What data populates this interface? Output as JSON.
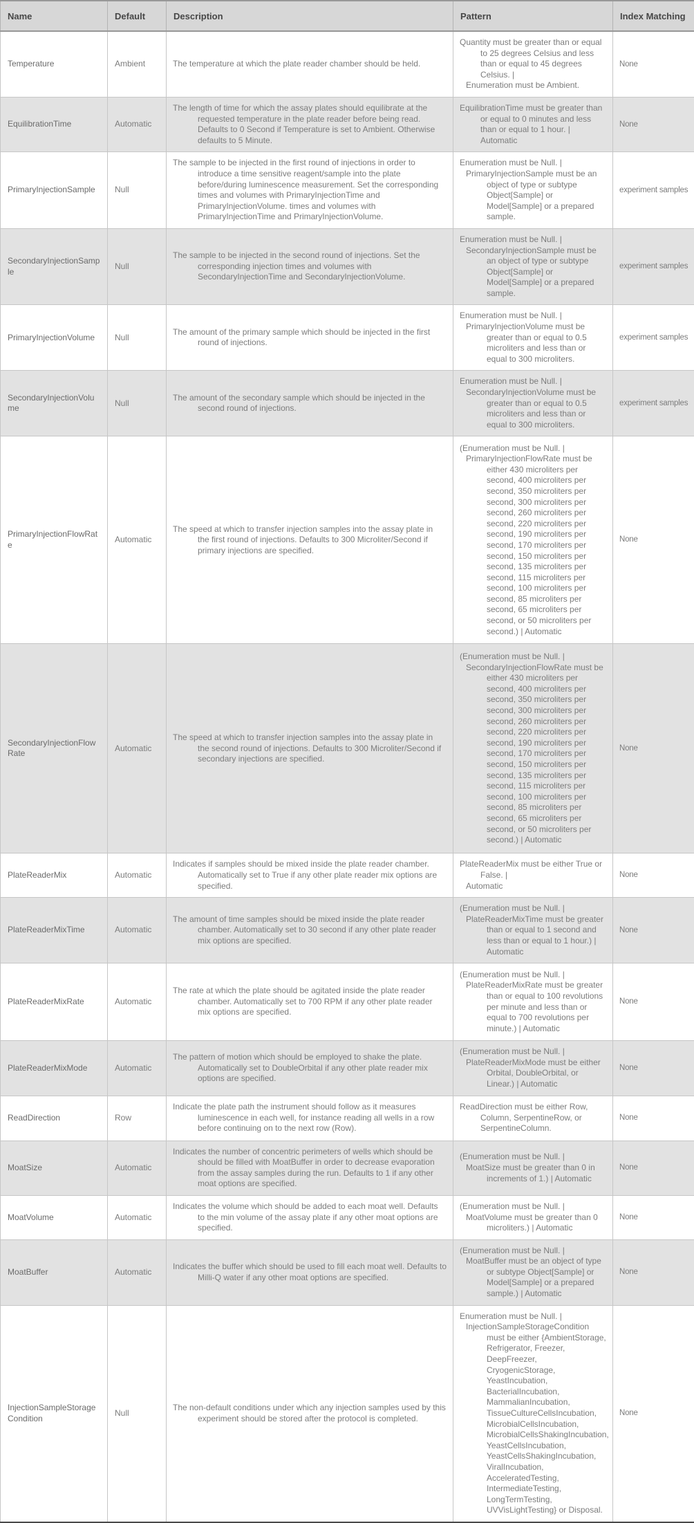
{
  "colors": {
    "header_bg": "#d7d7d7",
    "stripe_bg": "#e2e2e2",
    "header_text": "#474747",
    "body_text": "#7c7c7c",
    "border": "#c6c6c6",
    "bottom_rule": "#4a4a4a"
  },
  "table": {
    "columns": [
      {
        "label": "Name"
      },
      {
        "label": "Default"
      },
      {
        "label": "Description"
      },
      {
        "label": "Pattern"
      },
      {
        "label": "Index Matching"
      }
    ],
    "rows": [
      {
        "name": "Temperature",
        "default": "Ambient",
        "description": "The temperature at which the plate reader chamber should be held.",
        "pattern": [
          "Quantity must be greater than or equal to 25 degrees Celsius and less than or equal to 45 degrees Celsius.  |",
          "Enumeration must be Ambient."
        ],
        "index_matching": "None"
      },
      {
        "name": "EquilibrationTime",
        "default": "Automatic",
        "description": "The length of time for which the assay plates should equilibrate at the requested temperature in the plate reader before being read.  Defaults to 0 Second if Temperature is set to Ambient. Otherwise defaults to 5 Minute.",
        "pattern": [
          "EquilibrationTime must be greater than or equal to 0 minutes and less than or equal to 1 hour.  | Automatic"
        ],
        "index_matching": "None"
      },
      {
        "name": "PrimaryInjectionSample",
        "default": "Null",
        "description": "The sample to be injected in the first round of injections in order to introduce a time sensitive reagent/sample into the plate before/during luminescence measurement. Set the corresponding times and volumes with PrimaryInjectionTime and PrimaryInjectionVolume. times and volumes with PrimaryInjectionTime and PrimaryInjectionVolume.",
        "pattern": [
          "Enumeration must be Null.  |",
          "PrimaryInjectionSample must be an object of type or subtype Object[Sample] or Model[Sample] or a prepared sample."
        ],
        "index_matching": "experiment samples"
      },
      {
        "name": "SecondaryInjectionSample",
        "default": "Null",
        "description": "The sample to be injected in the second round of injections. Set the corresponding injection times and volumes with SecondaryInjectionTime and SecondaryInjectionVolume.",
        "pattern": [
          "Enumeration must be Null.  |",
          "SecondaryInjectionSample must be an object of type or subtype Object[Sample] or Model[Sample] or a prepared sample."
        ],
        "index_matching": "experiment samples"
      },
      {
        "name": "PrimaryInjectionVolume",
        "default": "Null",
        "description": "The amount of the primary sample which should be injected in the first round of injections.",
        "pattern": [
          "Enumeration must be Null.  |",
          "PrimaryInjectionVolume must be greater than or equal to 0.5 microliters and less than or equal to 300 microliters."
        ],
        "index_matching": "experiment samples"
      },
      {
        "name": "SecondaryInjectionVolume",
        "default": "Null",
        "description": "The amount of the secondary sample which should be injected in the second round of injections.",
        "pattern": [
          "Enumeration must be Null.  |",
          "SecondaryInjectionVolume must be greater than or equal to 0.5 microliters and less than or equal to 300 microliters."
        ],
        "index_matching": "experiment samples"
      },
      {
        "name": "PrimaryInjectionFlowRate",
        "default": "Automatic",
        "description": "The speed at which to transfer injection samples into the assay plate in the first round of injections.  Defaults to 300 Microliter/Second if primary injections are specified.",
        "pattern": [
          "(Enumeration must be Null.  |",
          "PrimaryInjectionFlowRate must be either 430 microliters per second, 400 microliters per second, 350 microliters per second, 300 microliters per second, 260 microliters per second, 220 microliters per second, 190 microliters per second, 170 microliters per second, 150 microliters per second, 135 microliters per second, 115 microliters per second, 100 microliters per second, 85 microliters per second, 65 microliters per second, or 50 microliters per second.)  | Automatic"
        ],
        "index_matching": "None"
      },
      {
        "name": "SecondaryInjectionFlowRate",
        "default": "Automatic",
        "description": "The speed at which to transfer injection samples into the assay plate in the second round of injections.  Defaults to 300 Microliter/Second if secondary injections are specified.",
        "pattern": [
          "(Enumeration must be Null.  |",
          "SecondaryInjectionFlowRate must be either 430 microliters per second, 400 microliters per second, 350 microliters per second, 300 microliters per second, 260 microliters per second, 220 microliters per second, 190 microliters per second, 170 microliters per second, 150 microliters per second, 135 microliters per second, 115 microliters per second, 100 microliters per second, 85 microliters per second, 65 microliters per second, or 50 microliters per second.)  | Automatic"
        ],
        "index_matching": "None"
      },
      {
        "name": "PlateReaderMix",
        "default": "Automatic",
        "description": "Indicates if samples should be mixed inside the plate reader chamber. Automatically set to True if any other plate reader mix options are specified.",
        "pattern": [
          "PlateReaderMix must be either True or False.  |",
          "Automatic"
        ],
        "index_matching": "None"
      },
      {
        "name": "PlateReaderMixTime",
        "default": "Automatic",
        "description": "The amount of time samples should be mixed inside the plate reader chamber.  Automatically set to 30 second if any other plate reader mix options are specified.",
        "pattern": [
          "(Enumeration must be Null.  |",
          "PlateReaderMixTime must be greater than or equal to 1 second and less than or equal to 1 hour.)  | Automatic"
        ],
        "index_matching": "None"
      },
      {
        "name": "PlateReaderMixRate",
        "default": "Automatic",
        "description": "The rate at which the plate should be agitated inside the plate reader chamber.  Automatically set to 700 RPM if any other plate reader mix options are specified.",
        "pattern": [
          "(Enumeration must be Null.  |",
          "PlateReaderMixRate must be greater than or equal to 100 revolutions per minute and less than or equal to 700 revolutions per minute.)  | Automatic"
        ],
        "index_matching": "None"
      },
      {
        "name": "PlateReaderMixMode",
        "default": "Automatic",
        "description": "The pattern of motion which should be employed to shake the plate.  Automatically set to DoubleOrbital if any other plate reader mix options are specified.",
        "pattern": [
          "(Enumeration must be Null.  |",
          "PlateReaderMixMode must be either Orbital, DoubleOrbital, or Linear.)  | Automatic"
        ],
        "index_matching": "None"
      },
      {
        "name": "ReadDirection",
        "default": "Row",
        "description": "Indicate the plate path the instrument should follow as it measures luminescence in each well, for instance reading all wells in a row before continuing on to the next row (Row).",
        "pattern": [
          "ReadDirection must be either Row, Column, SerpentineRow, or SerpentineColumn."
        ],
        "index_matching": "None"
      },
      {
        "name": "MoatSize",
        "default": "Automatic",
        "description": "Indicates the number of concentric perimeters of wells which should be should be filled with MoatBuffer in order to decrease evaporation from the assay samples during the run.  Defaults to 1 if any other moat options are specified.",
        "pattern": [
          "(Enumeration must be Null.  |",
          "MoatSize must be greater than 0 in increments of 1.)  | Automatic"
        ],
        "index_matching": "None"
      },
      {
        "name": "MoatVolume",
        "default": "Automatic",
        "description": "Indicates the volume which should be added to each moat well.  Defaults to the min volume of the assay plate if any other moat options are specified.",
        "pattern": [
          "(Enumeration must be Null.  |",
          "MoatVolume must be greater than 0 microliters.)  | Automatic"
        ],
        "index_matching": "None"
      },
      {
        "name": "MoatBuffer",
        "default": "Automatic",
        "description": "Indicates the buffer which should be used to fill each moat well. Defaults to Milli-Q water if any other moat options are specified.",
        "pattern": [
          "(Enumeration must be Null.  |",
          "MoatBuffer must be an object of type or subtype Object[Sample] or Model[Sample] or a prepared sample.)  | Automatic"
        ],
        "index_matching": "None"
      },
      {
        "name": "InjectionSampleStorageCondition",
        "default": "Null",
        "description": "The non-default conditions under which any injection samples used by this experiment should be stored after the protocol is completed.",
        "pattern": [
          "Enumeration must be Null.  |",
          "InjectionSampleStorageCondition must be either {AmbientStorage, Refrigerator, Freezer, DeepFreezer, CryogenicStorage, YeastIncubation, BacterialIncubation, MammalianIncubation, TissueCultureCellsIncubation, MicrobialCellsIncubation, MicrobialCellsShakingIncubation, YeastCellsIncubation, YeastCellsShakingIncubation, ViralIncubation, AcceleratedTesting, IntermediateTesting, LongTermTesting, UVVisLightTesting} or Disposal."
        ],
        "index_matching": "None"
      }
    ]
  }
}
